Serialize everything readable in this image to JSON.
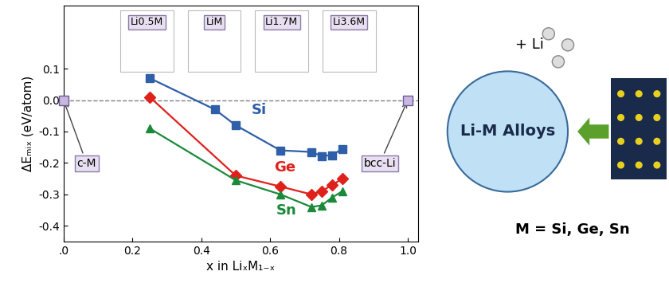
{
  "chart_data": {
    "type": "line",
    "xlabel": "x in LiₓM₁₋ₓ",
    "ylabel": "ΔEₘᵢₓ (eV/atom)",
    "xlim": [
      0,
      1.03
    ],
    "ylim": [
      -0.45,
      0.3
    ],
    "xticks": [
      {
        "value": 0,
        "label": ".0"
      },
      {
        "value": 0.2,
        "label": "0.2"
      },
      {
        "value": 0.4,
        "label": "0.4"
      },
      {
        "value": 0.6,
        "label": "0.6"
      },
      {
        "value": 0.8,
        "label": "0.8"
      },
      {
        "value": 1.0,
        "label": "1.0"
      }
    ],
    "yticks": [
      -0.4,
      -0.3,
      -0.2,
      -0.1,
      0.0,
      0.1
    ],
    "marker": "square",
    "series": [
      {
        "name": "Si",
        "color": "#2e5fa8",
        "marker": "square",
        "x": [
          0.25,
          0.44,
          0.5,
          0.63,
          0.72,
          0.75,
          0.78,
          0.81
        ],
        "values": [
          0.07,
          -0.03,
          -0.08,
          -0.16,
          -0.165,
          -0.178,
          -0.175,
          -0.155
        ]
      },
      {
        "name": "Ge",
        "color": "#e0201b",
        "marker": "diamond",
        "x": [
          0.25,
          0.5,
          0.63,
          0.72,
          0.75,
          0.78,
          0.81
        ],
        "values": [
          0.01,
          -0.24,
          -0.275,
          -0.3,
          -0.29,
          -0.27,
          -0.25
        ]
      },
      {
        "name": "Sn",
        "color": "#1a8a3a",
        "marker": "triangle",
        "x": [
          0.25,
          0.5,
          0.63,
          0.72,
          0.75,
          0.78,
          0.81
        ],
        "values": [
          -0.09,
          -0.255,
          -0.3,
          -0.34,
          -0.335,
          -0.31,
          -0.29
        ]
      }
    ],
    "reference_points": [
      {
        "x": 0,
        "y": 0,
        "label": "c-M"
      },
      {
        "x": 1.0,
        "y": 0,
        "label": "bcc-Li"
      }
    ],
    "zero_line": 0,
    "structure_labels": [
      "Li0.5M",
      "LiM",
      "Li1.7M",
      "Li3.6M"
    ]
  },
  "schematic": {
    "reactant": "+ Li",
    "product": "Li-M Alloys",
    "caption": "M = Si, Ge, Sn"
  }
}
